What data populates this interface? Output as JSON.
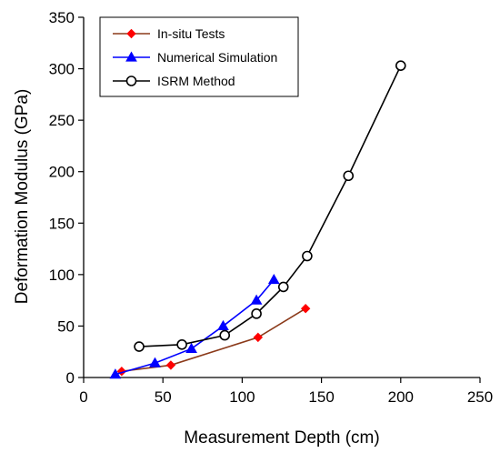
{
  "chart_data": {
    "type": "line",
    "xlabel": "Measurement Depth (cm)",
    "ylabel": "Deformation Modulus (GPa)",
    "xlim": [
      0,
      250
    ],
    "ylim": [
      0,
      350
    ],
    "xticks": [
      0,
      50,
      100,
      150,
      200,
      250
    ],
    "yticks": [
      0,
      50,
      100,
      150,
      200,
      250,
      300,
      350
    ],
    "grid": false,
    "legend_position": "top-left",
    "series": [
      {
        "name": "In-situ Tests",
        "color": "#8B3A1A",
        "marker_color": "#ff0000",
        "marker": "diamond",
        "x": [
          24,
          55,
          110,
          140
        ],
        "y": [
          6,
          12,
          39,
          67
        ]
      },
      {
        "name": "Numerical Simulation",
        "color": "#0000ff",
        "marker_color": "#0000ff",
        "marker": "triangle",
        "x": [
          20,
          45,
          68,
          88,
          109,
          120
        ],
        "y": [
          3,
          14,
          28,
          50,
          75,
          95
        ]
      },
      {
        "name": "ISRM Method",
        "color": "#000000",
        "marker_color": "#000000",
        "marker": "circle",
        "x": [
          35,
          62,
          89,
          109,
          126,
          141,
          167,
          200
        ],
        "y": [
          30,
          32,
          41,
          62,
          88,
          118,
          196,
          303
        ]
      }
    ]
  }
}
